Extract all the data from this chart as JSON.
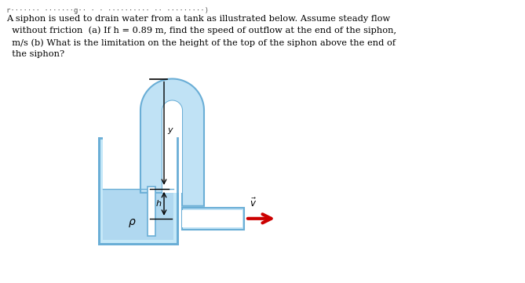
{
  "bg_color": "#ffffff",
  "tank_fill_color": "#c5e8f8",
  "tank_border_color": "#6aaed6",
  "water_color": "#b0d8f0",
  "tube_fill_color": "#c0e2f5",
  "tube_border_color": "#6aaed6",
  "tube_inner_color": "#ffffff",
  "arrow_color": "#cc0000",
  "dim_line_color": "#000000",
  "label_y": "y",
  "label_h": "h",
  "label_rho": "ρ",
  "label_v": "$\\vec{v}$",
  "header_line": "r······· ·······g·· · · ·········· ·· ·········)",
  "question_line1": "A siphon is used to drain water from a tank as illustrated below. Assume steady flow",
  "question_line2": "  without friction  (a) If h = 0.89 m, find the speed of outflow at the end of the siphon,",
  "question_line3": "  m/s (b) What is the limitation on the height of the top of the siphon above the end of",
  "question_line4": "  the siphon?"
}
